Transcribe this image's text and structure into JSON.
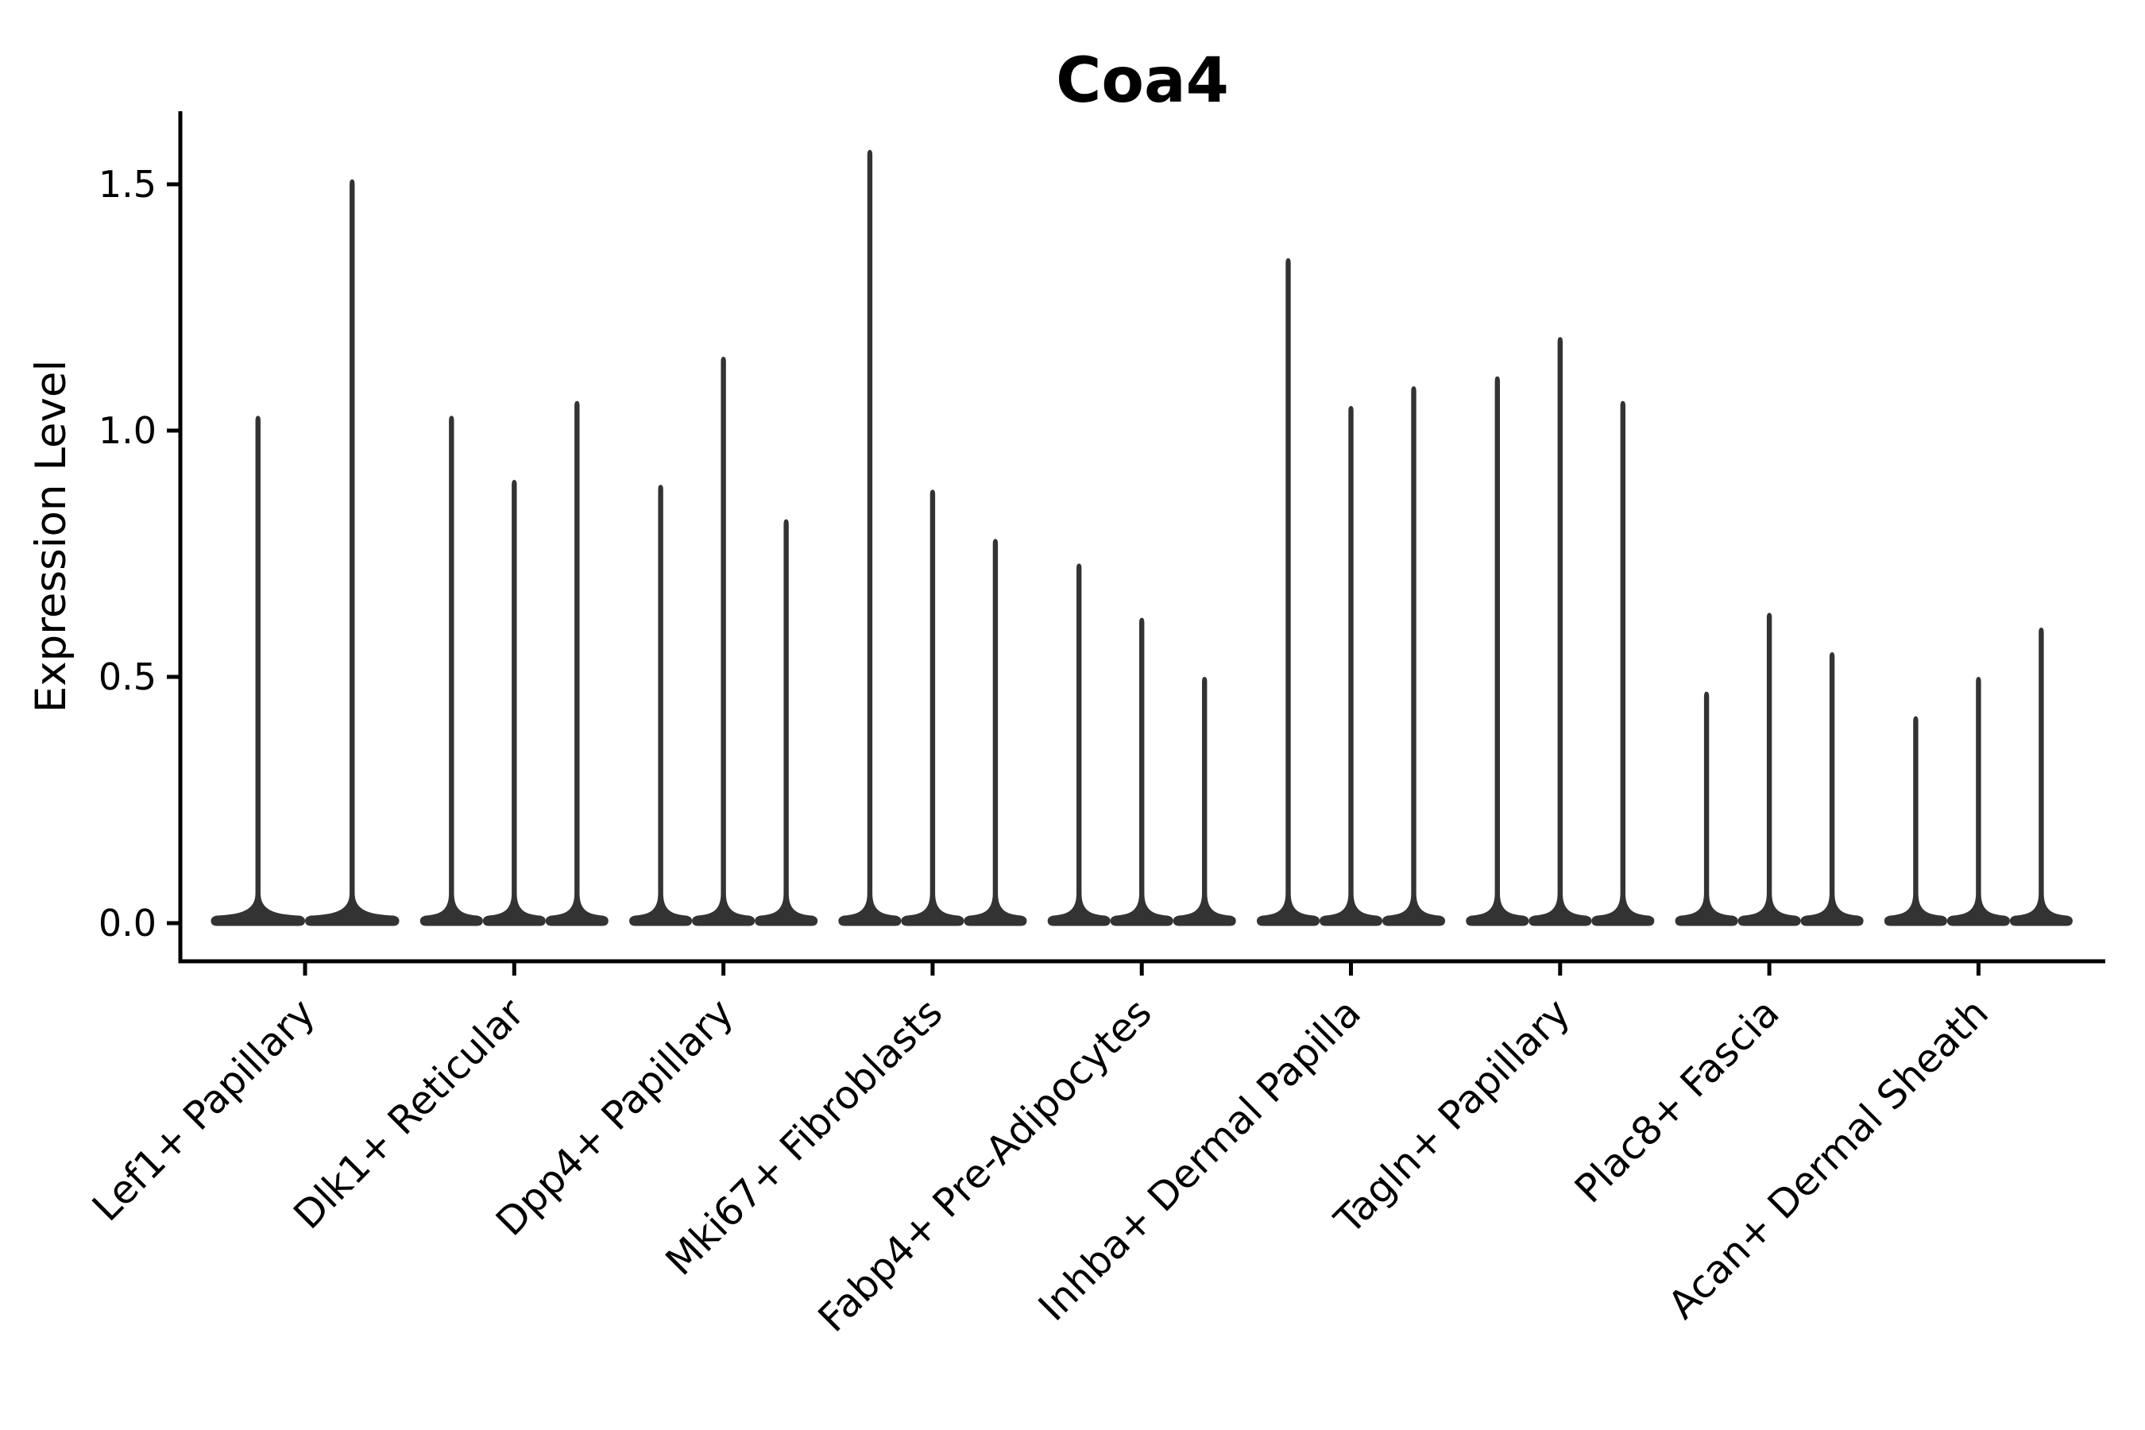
{
  "chart_data": {
    "type": "violin",
    "title": "Coa4",
    "xlabel": "",
    "ylabel": "Expression Level",
    "ylim": [
      0,
      1.65
    ],
    "yticks": [
      0.0,
      0.5,
      1.0,
      1.5
    ],
    "ytick_labels": [
      "0.0",
      "0.5",
      "1.0",
      "1.5"
    ],
    "grid": false,
    "legend_position": "none",
    "categories": [
      "Lef1+ Papillary",
      "Dlk1+ Reticular",
      "Dpp4+ Papillary",
      "Mki67+ Fibroblasts",
      "Fabp4+ Pre-Adipocytes",
      "Inhba+ Dermal Papilla",
      "Tagln+ Papillary",
      "Plac8+ Fascia",
      "Acan+ Dermal Sheath"
    ],
    "series": [
      {
        "category": "Lef1+ Papillary",
        "violin_max_values": [
          1.03,
          1.51
        ]
      },
      {
        "category": "Dlk1+ Reticular",
        "violin_max_values": [
          1.03,
          0.9,
          1.06
        ]
      },
      {
        "category": "Dpp4+ Papillary",
        "violin_max_values": [
          0.89,
          1.15,
          0.82
        ]
      },
      {
        "category": "Mki67+ Fibroblasts",
        "violin_max_values": [
          1.57,
          0.88,
          0.78
        ]
      },
      {
        "category": "Fabp4+ Pre-Adipocytes",
        "violin_max_values": [
          0.73,
          0.62,
          0.5
        ]
      },
      {
        "category": "Inhba+ Dermal Papilla",
        "violin_max_values": [
          1.35,
          1.05,
          1.09
        ]
      },
      {
        "category": "Tagln+ Papillary",
        "violin_max_values": [
          1.11,
          1.19,
          1.06
        ]
      },
      {
        "category": "Plac8+ Fascia",
        "violin_max_values": [
          0.47,
          0.63,
          0.55
        ]
      },
      {
        "category": "Acan+ Dermal Sheath",
        "violin_max_values": [
          0.42,
          0.5,
          0.6
        ]
      }
    ],
    "shape_note": "Each violin is a thin vertical density spike rising from 0 to its max value, with a wide flat density bulge at expression level 0",
    "colors": {
      "violin": "#333333",
      "axis": "#000000",
      "text": "#000000",
      "background": "#ffffff"
    }
  }
}
